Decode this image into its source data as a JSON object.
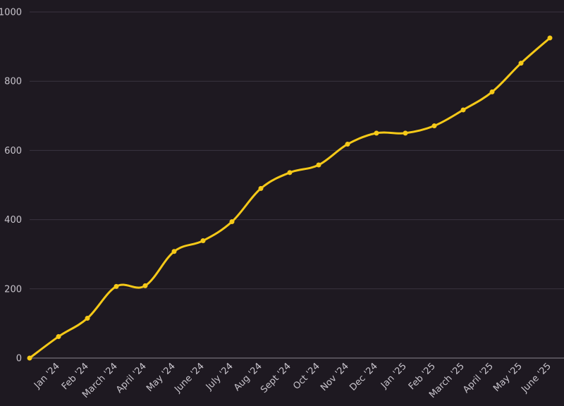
{
  "chart_data": {
    "type": "line",
    "title": "",
    "xlabel": "",
    "ylabel": "",
    "ylim": [
      0,
      1000
    ],
    "yticks": [
      0,
      200,
      400,
      600,
      800,
      1000
    ],
    "grid": true,
    "legend": "none",
    "colors": {
      "background": "#1e1921",
      "line": "#f5c918",
      "grid": "#3a3440",
      "text": "#c8c4cc"
    },
    "categories": [
      "",
      "Jan '24",
      "Feb '24",
      "March '24",
      "April '24",
      "May '24",
      "June '24",
      "July '24",
      "Aug '24",
      "Sept '24",
      "Oct '24",
      "Nov '24",
      "Dec '24",
      "Jan '25",
      "Feb '25",
      "March '25",
      "April '25",
      "May '25",
      "June '25"
    ],
    "series": [
      {
        "values": [
          0,
          62,
          115,
          207,
          209,
          308,
          339,
          394,
          490,
          536,
          558,
          618,
          650,
          650,
          671,
          717,
          769,
          852,
          925
        ]
      }
    ]
  }
}
